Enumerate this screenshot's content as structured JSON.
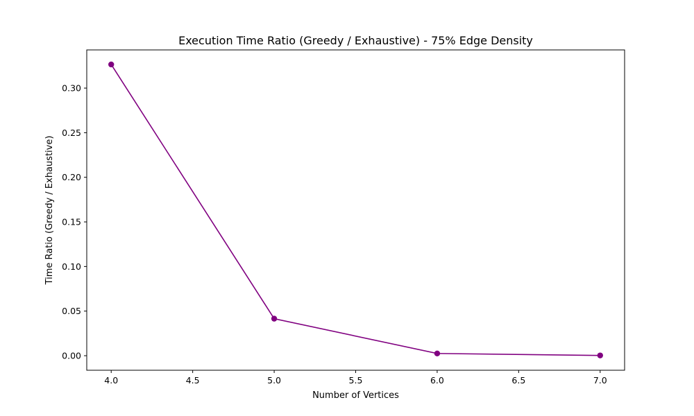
{
  "chart_data": {
    "type": "line",
    "title": "Execution Time Ratio (Greedy / Exhaustive) - 75% Edge Density",
    "xlabel": "Number of Vertices",
    "ylabel": "Time Ratio (Greedy / Exhaustive)",
    "x": [
      4.0,
      5.0,
      6.0,
      7.0
    ],
    "series": [
      {
        "values": [
          0.3265,
          0.0415,
          0.0025,
          0.0003
        ],
        "color": "#800080",
        "marker": "circle"
      }
    ],
    "xlim": [
      3.85,
      7.15
    ],
    "ylim": [
      -0.0163,
      0.3428
    ],
    "xticks": [
      4.0,
      4.5,
      5.0,
      5.5,
      6.0,
      6.5,
      7.0
    ],
    "xtick_labels": [
      "4.0",
      "4.5",
      "5.0",
      "5.5",
      "6.0",
      "6.5",
      "7.0"
    ],
    "yticks": [
      0.0,
      0.05,
      0.1,
      0.15,
      0.2,
      0.25,
      0.3
    ],
    "ytick_labels": [
      "0.00",
      "0.05",
      "0.10",
      "0.15",
      "0.20",
      "0.25",
      "0.30"
    ],
    "grid": false,
    "legend": "none"
  }
}
